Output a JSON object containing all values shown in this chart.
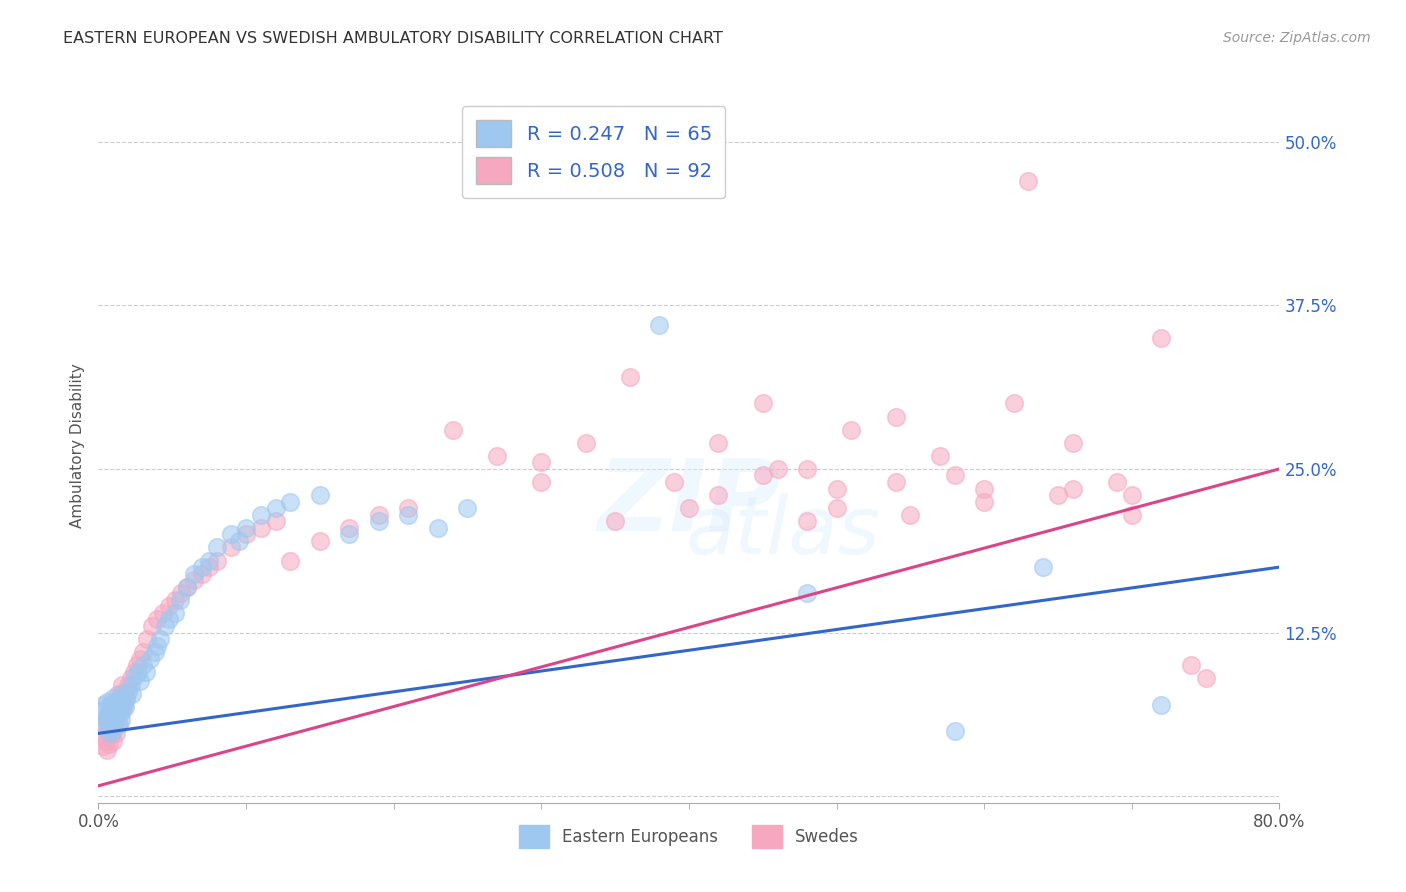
{
  "title": "EASTERN EUROPEAN VS SWEDISH AMBULATORY DISABILITY CORRELATION CHART",
  "source": "Source: ZipAtlas.com",
  "ylabel": "Ambulatory Disability",
  "xlim": [
    0.0,
    0.8
  ],
  "ylim": [
    -0.005,
    0.54
  ],
  "xtick_positions": [
    0.0,
    0.8
  ],
  "xtick_labels": [
    "0.0%",
    "80.0%"
  ],
  "xtick_minor_positions": [
    0.1,
    0.2,
    0.3,
    0.4,
    0.5,
    0.6,
    0.7
  ],
  "yticks_right": [
    0.125,
    0.25,
    0.375,
    0.5
  ],
  "ytick_labels_right": [
    "12.5%",
    "25.0%",
    "37.5%",
    "50.0%"
  ],
  "yticks_grid": [
    0.0,
    0.125,
    0.25,
    0.375,
    0.5
  ],
  "blue_color": "#9EC8F0",
  "pink_color": "#F5A8C0",
  "blue_line_color": "#3366CC",
  "pink_line_color": "#DD4488",
  "legend_text_color": "#3366CC",
  "title_color": "#333333",
  "source_color": "#999999",
  "grid_color": "#CCCCCC",
  "watermark_text": "ZIPatlas",
  "R_blue": 0.247,
  "N_blue": 65,
  "R_pink": 0.508,
  "N_pink": 92,
  "blue_line_x0": 0.0,
  "blue_line_y0": 0.048,
  "blue_line_x1": 0.8,
  "blue_line_y1": 0.175,
  "pink_line_x0": 0.0,
  "pink_line_y0": 0.008,
  "pink_line_x1": 0.8,
  "pink_line_y1": 0.25,
  "blue_scatter_x": [
    0.002,
    0.003,
    0.004,
    0.005,
    0.006,
    0.006,
    0.007,
    0.007,
    0.008,
    0.008,
    0.009,
    0.009,
    0.01,
    0.01,
    0.01,
    0.011,
    0.012,
    0.012,
    0.013,
    0.013,
    0.014,
    0.015,
    0.015,
    0.016,
    0.017,
    0.018,
    0.019,
    0.02,
    0.022,
    0.023,
    0.025,
    0.027,
    0.028,
    0.03,
    0.032,
    0.035,
    0.038,
    0.04,
    0.042,
    0.045,
    0.048,
    0.052,
    0.055,
    0.06,
    0.065,
    0.07,
    0.075,
    0.08,
    0.09,
    0.095,
    0.1,
    0.11,
    0.12,
    0.13,
    0.15,
    0.17,
    0.19,
    0.21,
    0.23,
    0.25,
    0.38,
    0.48,
    0.58,
    0.64,
    0.72
  ],
  "blue_scatter_y": [
    0.065,
    0.07,
    0.055,
    0.06,
    0.058,
    0.072,
    0.048,
    0.065,
    0.052,
    0.07,
    0.06,
    0.055,
    0.068,
    0.05,
    0.075,
    0.058,
    0.06,
    0.072,
    0.055,
    0.065,
    0.07,
    0.058,
    0.078,
    0.065,
    0.072,
    0.068,
    0.075,
    0.08,
    0.085,
    0.078,
    0.092,
    0.095,
    0.088,
    0.1,
    0.095,
    0.105,
    0.11,
    0.115,
    0.12,
    0.13,
    0.135,
    0.14,
    0.15,
    0.16,
    0.17,
    0.175,
    0.18,
    0.19,
    0.2,
    0.195,
    0.205,
    0.215,
    0.22,
    0.225,
    0.23,
    0.2,
    0.21,
    0.215,
    0.205,
    0.22,
    0.36,
    0.155,
    0.05,
    0.175,
    0.07
  ],
  "pink_scatter_x": [
    0.002,
    0.003,
    0.004,
    0.005,
    0.005,
    0.006,
    0.006,
    0.007,
    0.007,
    0.008,
    0.008,
    0.009,
    0.009,
    0.01,
    0.01,
    0.011,
    0.011,
    0.012,
    0.012,
    0.013,
    0.013,
    0.014,
    0.015,
    0.015,
    0.016,
    0.017,
    0.018,
    0.019,
    0.02,
    0.022,
    0.024,
    0.026,
    0.028,
    0.03,
    0.033,
    0.036,
    0.04,
    0.044,
    0.048,
    0.052,
    0.056,
    0.06,
    0.065,
    0.07,
    0.075,
    0.08,
    0.09,
    0.1,
    0.11,
    0.12,
    0.13,
    0.15,
    0.17,
    0.19,
    0.21,
    0.24,
    0.27,
    0.3,
    0.33,
    0.36,
    0.39,
    0.42,
    0.45,
    0.48,
    0.51,
    0.54,
    0.57,
    0.6,
    0.63,
    0.66,
    0.69,
    0.72,
    0.75,
    0.3,
    0.35,
    0.4,
    0.45,
    0.5,
    0.55,
    0.6,
    0.65,
    0.7,
    0.42,
    0.46,
    0.5,
    0.54,
    0.58,
    0.62,
    0.66,
    0.7,
    0.74,
    0.48
  ],
  "pink_scatter_y": [
    0.045,
    0.038,
    0.052,
    0.042,
    0.06,
    0.035,
    0.055,
    0.062,
    0.04,
    0.058,
    0.07,
    0.048,
    0.065,
    0.042,
    0.055,
    0.062,
    0.072,
    0.048,
    0.058,
    0.068,
    0.078,
    0.055,
    0.065,
    0.075,
    0.085,
    0.07,
    0.08,
    0.075,
    0.085,
    0.09,
    0.095,
    0.1,
    0.105,
    0.11,
    0.12,
    0.13,
    0.135,
    0.14,
    0.145,
    0.15,
    0.155,
    0.16,
    0.165,
    0.17,
    0.175,
    0.18,
    0.19,
    0.2,
    0.205,
    0.21,
    0.18,
    0.195,
    0.205,
    0.215,
    0.22,
    0.28,
    0.26,
    0.24,
    0.27,
    0.32,
    0.24,
    0.27,
    0.3,
    0.25,
    0.28,
    0.29,
    0.26,
    0.235,
    0.47,
    0.27,
    0.24,
    0.35,
    0.09,
    0.255,
    0.21,
    0.22,
    0.245,
    0.235,
    0.215,
    0.225,
    0.23,
    0.215,
    0.23,
    0.25,
    0.22,
    0.24,
    0.245,
    0.3,
    0.235,
    0.23,
    0.1,
    0.21
  ]
}
